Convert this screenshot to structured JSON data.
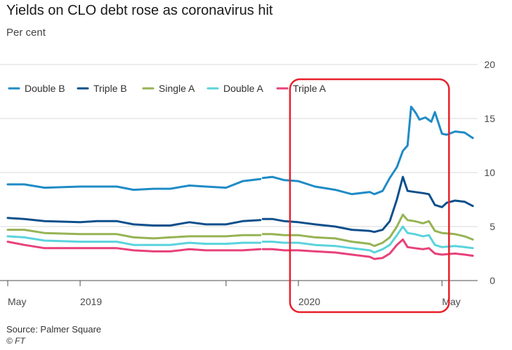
{
  "title": "Yields on CLO debt rose as coronavirus hit",
  "subtitle": "Per cent",
  "source": "Source: Palmer Square",
  "credit": "© FT",
  "chart_data": {
    "type": "line",
    "title": "Yields on CLO debt rose as coronavirus hit",
    "ylabel": "Per cent",
    "ylim": [
      0,
      20
    ],
    "yticks": [
      0,
      5,
      10,
      15,
      20
    ],
    "grid": true,
    "legend_position": "top-left",
    "x_range": [
      "2019-05-01",
      "2020-05-31"
    ],
    "x_ticks": [
      {
        "date": "2019-05-01",
        "label": "May"
      },
      {
        "date": "2019-07-01",
        "label": "2019"
      },
      {
        "date": "2019-11-01",
        "label": ""
      },
      {
        "date": "2020-01-01",
        "label": "2020"
      },
      {
        "date": "2020-05-01",
        "label": "May"
      }
    ],
    "highlight": {
      "start": "2020-01-01",
      "end": "2020-05-01",
      "color": "#e8202a"
    },
    "series": [
      {
        "name": "Double B",
        "color": "#1f8bc6",
        "points": [
          [
            "2019-05-01",
            8.9
          ],
          [
            "2019-05-15",
            8.9
          ],
          [
            "2019-06-01",
            8.6
          ],
          [
            "2019-07-01",
            8.7
          ],
          [
            "2019-07-15",
            8.7
          ],
          [
            "2019-08-01",
            8.7
          ],
          [
            "2019-08-15",
            8.4
          ],
          [
            "2019-09-01",
            8.5
          ],
          [
            "2019-09-15",
            8.5
          ],
          [
            "2019-10-01",
            8.8
          ],
          [
            "2019-10-15",
            8.7
          ],
          [
            "2019-11-01",
            8.6
          ],
          [
            "2019-11-15",
            9.2
          ],
          [
            "2019-11-30",
            9.4
          ],
          [
            "2019-12-01",
            null
          ],
          [
            "2019-12-02",
            9.5
          ],
          [
            "2019-12-10",
            9.6
          ],
          [
            "2019-12-20",
            9.3
          ],
          [
            "2020-01-01",
            9.2
          ],
          [
            "2020-01-15",
            8.7
          ],
          [
            "2020-02-01",
            8.4
          ],
          [
            "2020-02-15",
            8.0
          ],
          [
            "2020-03-01",
            8.2
          ],
          [
            "2020-03-05",
            8.0
          ],
          [
            "2020-03-12",
            8.3
          ],
          [
            "2020-03-18",
            9.5
          ],
          [
            "2020-03-24",
            10.5
          ],
          [
            "2020-03-29",
            12.0
          ],
          [
            "2020-04-02",
            12.5
          ],
          [
            "2020-04-05",
            16.1
          ],
          [
            "2020-04-09",
            15.5
          ],
          [
            "2020-04-12",
            14.9
          ],
          [
            "2020-04-17",
            15.1
          ],
          [
            "2020-04-22",
            14.7
          ],
          [
            "2020-04-25",
            15.6
          ],
          [
            "2020-05-01",
            13.6
          ],
          [
            "2020-05-05",
            13.5
          ],
          [
            "2020-05-12",
            13.8
          ],
          [
            "2020-05-20",
            13.7
          ],
          [
            "2020-05-27",
            13.2
          ]
        ]
      },
      {
        "name": "Triple B",
        "color": "#0d4f8b",
        "points": [
          [
            "2019-05-01",
            5.8
          ],
          [
            "2019-05-15",
            5.7
          ],
          [
            "2019-06-01",
            5.5
          ],
          [
            "2019-07-01",
            5.4
          ],
          [
            "2019-07-15",
            5.5
          ],
          [
            "2019-08-01",
            5.5
          ],
          [
            "2019-08-15",
            5.2
          ],
          [
            "2019-09-01",
            5.1
          ],
          [
            "2019-09-15",
            5.1
          ],
          [
            "2019-10-01",
            5.4
          ],
          [
            "2019-10-15",
            5.2
          ],
          [
            "2019-11-01",
            5.2
          ],
          [
            "2019-11-15",
            5.5
          ],
          [
            "2019-11-30",
            5.6
          ],
          [
            "2019-12-01",
            null
          ],
          [
            "2019-12-02",
            5.7
          ],
          [
            "2019-12-10",
            5.7
          ],
          [
            "2019-12-20",
            5.5
          ],
          [
            "2020-01-01",
            5.4
          ],
          [
            "2020-01-15",
            5.2
          ],
          [
            "2020-02-01",
            5.0
          ],
          [
            "2020-02-15",
            4.7
          ],
          [
            "2020-03-01",
            4.6
          ],
          [
            "2020-03-05",
            4.5
          ],
          [
            "2020-03-12",
            4.7
          ],
          [
            "2020-03-18",
            5.5
          ],
          [
            "2020-03-24",
            7.5
          ],
          [
            "2020-03-29",
            9.6
          ],
          [
            "2020-04-02",
            8.3
          ],
          [
            "2020-04-08",
            8.2
          ],
          [
            "2020-04-15",
            8.1
          ],
          [
            "2020-04-20",
            8.0
          ],
          [
            "2020-04-25",
            7.0
          ],
          [
            "2020-05-01",
            6.8
          ],
          [
            "2020-05-05",
            7.2
          ],
          [
            "2020-05-12",
            7.4
          ],
          [
            "2020-05-20",
            7.3
          ],
          [
            "2020-05-27",
            6.9
          ]
        ]
      },
      {
        "name": "Single A",
        "color": "#96b354",
        "points": [
          [
            "2019-05-01",
            4.7
          ],
          [
            "2019-05-15",
            4.7
          ],
          [
            "2019-06-01",
            4.4
          ],
          [
            "2019-07-01",
            4.3
          ],
          [
            "2019-07-15",
            4.3
          ],
          [
            "2019-08-01",
            4.3
          ],
          [
            "2019-08-15",
            4.0
          ],
          [
            "2019-09-01",
            3.9
          ],
          [
            "2019-09-15",
            4.0
          ],
          [
            "2019-10-01",
            4.1
          ],
          [
            "2019-10-15",
            4.1
          ],
          [
            "2019-11-01",
            4.1
          ],
          [
            "2019-11-15",
            4.2
          ],
          [
            "2019-11-30",
            4.2
          ],
          [
            "2019-12-01",
            null
          ],
          [
            "2019-12-02",
            4.3
          ],
          [
            "2019-12-10",
            4.3
          ],
          [
            "2019-12-20",
            4.2
          ],
          [
            "2020-01-01",
            4.2
          ],
          [
            "2020-01-15",
            4.0
          ],
          [
            "2020-02-01",
            3.9
          ],
          [
            "2020-02-15",
            3.6
          ],
          [
            "2020-03-01",
            3.4
          ],
          [
            "2020-03-05",
            3.2
          ],
          [
            "2020-03-12",
            3.5
          ],
          [
            "2020-03-18",
            4.0
          ],
          [
            "2020-03-24",
            5.0
          ],
          [
            "2020-03-29",
            6.1
          ],
          [
            "2020-04-02",
            5.6
          ],
          [
            "2020-04-08",
            5.5
          ],
          [
            "2020-04-15",
            5.3
          ],
          [
            "2020-04-20",
            5.5
          ],
          [
            "2020-04-25",
            4.6
          ],
          [
            "2020-05-01",
            4.4
          ],
          [
            "2020-05-12",
            4.3
          ],
          [
            "2020-05-20",
            4.1
          ],
          [
            "2020-05-27",
            3.8
          ]
        ]
      },
      {
        "name": "Double A",
        "color": "#5ad3dc",
        "points": [
          [
            "2019-05-01",
            4.1
          ],
          [
            "2019-05-15",
            4.0
          ],
          [
            "2019-06-01",
            3.7
          ],
          [
            "2019-07-01",
            3.6
          ],
          [
            "2019-07-15",
            3.6
          ],
          [
            "2019-08-01",
            3.6
          ],
          [
            "2019-08-15",
            3.3
          ],
          [
            "2019-09-01",
            3.3
          ],
          [
            "2019-09-15",
            3.3
          ],
          [
            "2019-10-01",
            3.5
          ],
          [
            "2019-10-15",
            3.4
          ],
          [
            "2019-11-01",
            3.4
          ],
          [
            "2019-11-15",
            3.5
          ],
          [
            "2019-11-30",
            3.5
          ],
          [
            "2019-12-01",
            null
          ],
          [
            "2019-12-02",
            3.6
          ],
          [
            "2019-12-10",
            3.6
          ],
          [
            "2019-12-20",
            3.5
          ],
          [
            "2020-01-01",
            3.5
          ],
          [
            "2020-01-15",
            3.3
          ],
          [
            "2020-02-01",
            3.2
          ],
          [
            "2020-02-15",
            3.0
          ],
          [
            "2020-03-01",
            2.8
          ],
          [
            "2020-03-05",
            2.6
          ],
          [
            "2020-03-12",
            2.9
          ],
          [
            "2020-03-18",
            3.3
          ],
          [
            "2020-03-24",
            4.2
          ],
          [
            "2020-03-29",
            5.0
          ],
          [
            "2020-04-02",
            4.4
          ],
          [
            "2020-04-08",
            4.3
          ],
          [
            "2020-04-15",
            4.1
          ],
          [
            "2020-04-20",
            4.2
          ],
          [
            "2020-04-25",
            3.3
          ],
          [
            "2020-05-01",
            3.1
          ],
          [
            "2020-05-12",
            3.2
          ],
          [
            "2020-05-20",
            3.1
          ],
          [
            "2020-05-27",
            3.0
          ]
        ]
      },
      {
        "name": "Triple A",
        "color": "#e8407a",
        "points": [
          [
            "2019-05-01",
            3.6
          ],
          [
            "2019-05-15",
            3.3
          ],
          [
            "2019-06-01",
            3.0
          ],
          [
            "2019-07-01",
            3.0
          ],
          [
            "2019-07-15",
            3.0
          ],
          [
            "2019-08-01",
            3.0
          ],
          [
            "2019-08-15",
            2.8
          ],
          [
            "2019-09-01",
            2.7
          ],
          [
            "2019-09-15",
            2.7
          ],
          [
            "2019-10-01",
            2.9
          ],
          [
            "2019-10-15",
            2.8
          ],
          [
            "2019-11-01",
            2.8
          ],
          [
            "2019-11-15",
            2.8
          ],
          [
            "2019-11-30",
            2.9
          ],
          [
            "2019-12-01",
            null
          ],
          [
            "2019-12-02",
            2.9
          ],
          [
            "2019-12-10",
            2.9
          ],
          [
            "2019-12-20",
            2.8
          ],
          [
            "2020-01-01",
            2.8
          ],
          [
            "2020-01-15",
            2.7
          ],
          [
            "2020-02-01",
            2.6
          ],
          [
            "2020-02-15",
            2.4
          ],
          [
            "2020-03-01",
            2.2
          ],
          [
            "2020-03-05",
            2.0
          ],
          [
            "2020-03-12",
            2.1
          ],
          [
            "2020-03-18",
            2.5
          ],
          [
            "2020-03-24",
            3.3
          ],
          [
            "2020-03-29",
            3.8
          ],
          [
            "2020-04-02",
            3.1
          ],
          [
            "2020-04-08",
            3.0
          ],
          [
            "2020-04-15",
            2.9
          ],
          [
            "2020-04-20",
            3.0
          ],
          [
            "2020-04-25",
            2.5
          ],
          [
            "2020-05-01",
            2.4
          ],
          [
            "2020-05-12",
            2.5
          ],
          [
            "2020-05-20",
            2.4
          ],
          [
            "2020-05-27",
            2.3
          ]
        ]
      }
    ]
  }
}
